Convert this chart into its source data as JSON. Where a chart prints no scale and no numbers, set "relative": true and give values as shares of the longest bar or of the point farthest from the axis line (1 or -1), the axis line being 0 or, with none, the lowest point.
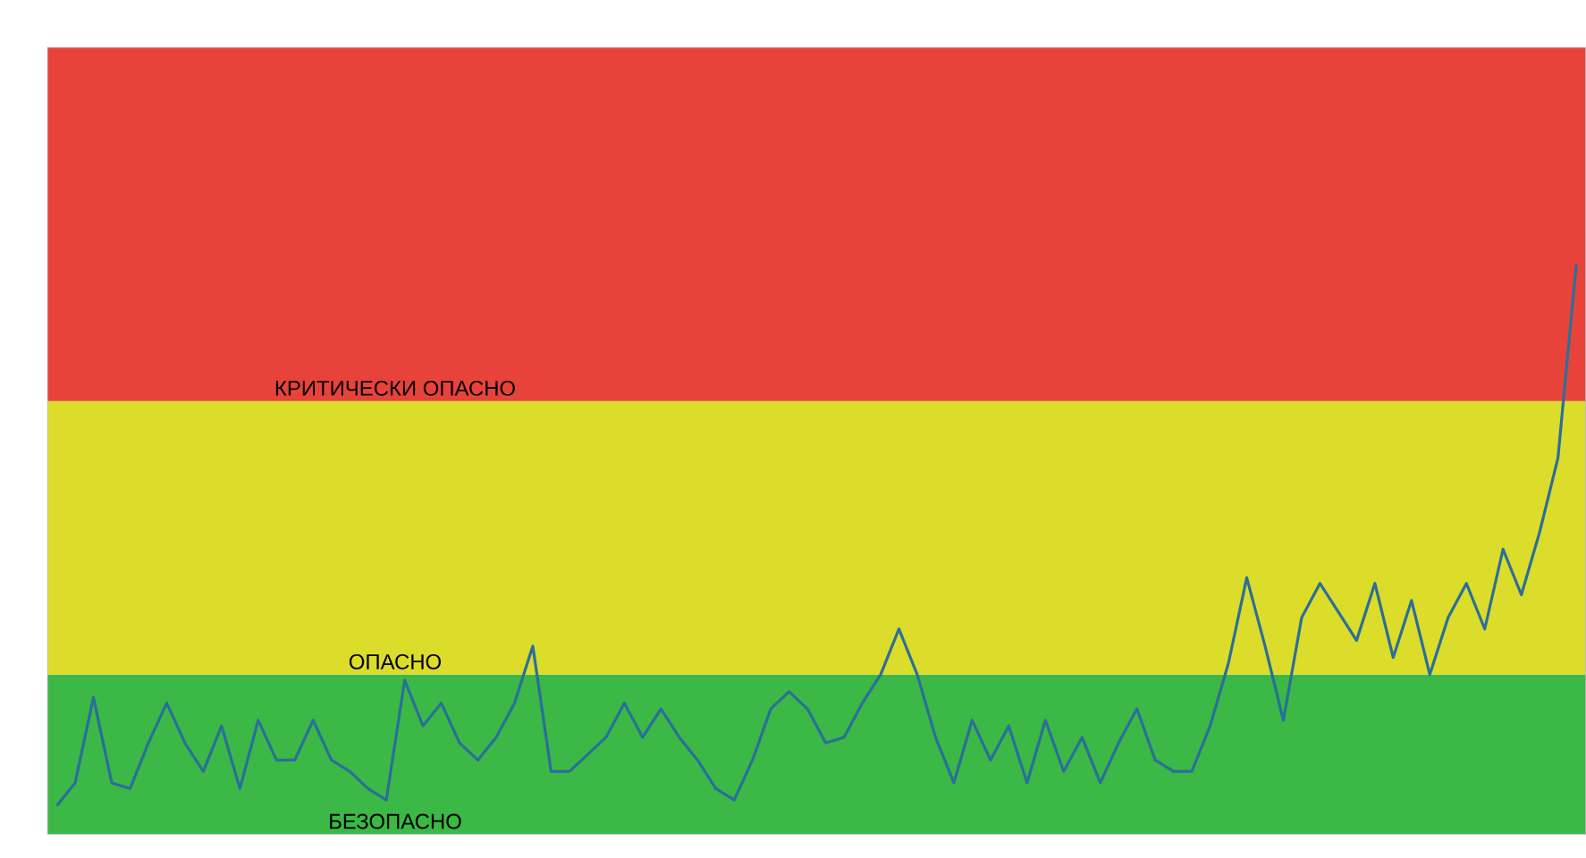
{
  "chart_data": {
    "type": "line",
    "relative": true,
    "tick_labels": false,
    "categories": [
      null,
      null,
      null,
      null,
      null,
      null,
      null,
      null,
      null,
      null,
      null,
      null,
      null,
      null,
      null,
      null,
      null,
      null,
      null,
      null,
      null,
      null,
      null,
      null,
      null,
      null,
      null,
      null,
      null,
      null,
      null,
      null,
      null,
      null,
      null,
      null,
      null,
      null,
      null,
      null,
      null,
      null,
      null,
      null,
      null,
      null,
      null,
      null,
      null,
      null,
      null,
      null,
      null,
      null,
      null,
      null,
      null,
      null,
      null,
      null,
      null,
      null,
      null,
      null,
      null,
      null,
      null,
      null,
      null,
      null,
      null,
      null,
      null,
      null,
      null,
      null,
      null,
      null,
      null,
      null,
      null,
      null,
      null,
      null
    ],
    "series": [
      {
        "color": "#2a6f9a",
        "values": [
          0.05,
          0.09,
          0.24,
          0.09,
          0.08,
          0.16,
          0.23,
          0.16,
          0.11,
          0.19,
          0.08,
          0.2,
          0.13,
          0.13,
          0.2,
          0.13,
          0.11,
          0.08,
          0.06,
          0.27,
          0.19,
          0.23,
          0.16,
          0.13,
          0.17,
          0.23,
          0.33,
          0.11,
          0.11,
          0.14,
          0.17,
          0.23,
          0.17,
          0.22,
          0.17,
          0.13,
          0.08,
          0.06,
          0.13,
          0.22,
          0.25,
          0.22,
          0.16,
          0.17,
          0.23,
          0.28,
          0.36,
          0.28,
          0.17,
          0.09,
          0.2,
          0.13,
          0.19,
          0.09,
          0.2,
          0.11,
          0.17,
          0.09,
          0.16,
          0.22,
          0.13,
          0.11,
          0.11,
          0.19,
          0.3,
          0.45,
          0.33,
          0.2,
          0.38,
          0.44,
          0.39,
          0.34,
          0.44,
          0.31,
          0.41,
          0.28,
          0.38,
          0.44,
          0.36,
          0.5,
          0.42,
          0.53,
          0.66,
          1
        ]
      }
    ],
    "bands": [
      {
        "axis": "y",
        "from": 0,
        "to": 0.28,
        "label": "БЕЗОПАСНО",
        "color": "#3cb846"
      },
      {
        "axis": "y",
        "from": 0.28,
        "to": 0.76,
        "label": "ОПАСНО",
        "color": "#dcdc2a"
      },
      {
        "axis": "y",
        "from": 0.76,
        "to": 1.38,
        "label": "КРИТИЧЕСКИ ОПАСНО",
        "color": "#e8433a"
      }
    ]
  }
}
